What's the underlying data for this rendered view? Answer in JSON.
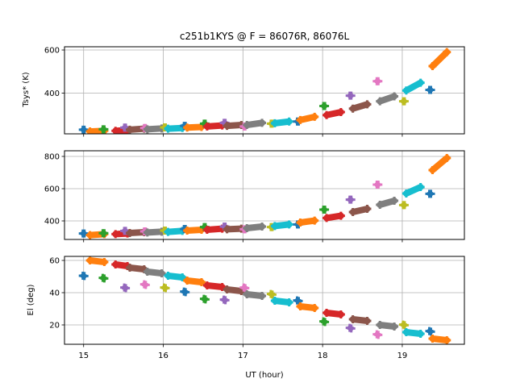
{
  "chart_data": {
    "type": "scatter",
    "title": "c251b1KYS @ F = 86076R, 86076L",
    "xlabel": "UT (hour)",
    "xlim": [
      14.76,
      19.78
    ],
    "xticks": [
      15,
      16,
      17,
      18,
      19
    ],
    "xtick_labels": [
      "15",
      "16",
      "17",
      "18",
      "19"
    ],
    "grid": true,
    "colors": [
      "#1f77b4",
      "#ff7f0e",
      "#2ca02c",
      "#d62728",
      "#9467bd",
      "#8c564b",
      "#e377c2",
      "#7f7f7f",
      "#bcbd22",
      "#17becf"
    ],
    "panels": [
      {
        "name": "tsys-r",
        "ylabel": "Tsys* (K)",
        "ylim": [
          211,
          615
        ],
        "yticks": [
          400,
          600
        ],
        "ytick_labels": [
          "400",
          "600"
        ],
        "show_xtick_labels": false
      },
      {
        "name": "tsys-l",
        "ylabel": "",
        "ylim": [
          285,
          835
        ],
        "yticks": [
          400,
          600,
          800
        ],
        "ytick_labels": [
          "400",
          "600",
          "800"
        ],
        "show_xtick_labels": false
      },
      {
        "name": "elevation",
        "ylabel": "El (deg)",
        "ylim": [
          8,
          62.5
        ],
        "yticks": [
          20,
          40,
          60
        ],
        "ytick_labels": [
          "20",
          "40",
          "60"
        ],
        "show_xtick_labels": true
      }
    ],
    "scans": [
      {
        "t0": 14.99,
        "t1": 15.01,
        "tsys_r": [
          230,
          230
        ],
        "tsys_l": [
          322,
          322
        ],
        "el": [
          50.5,
          50.3
        ]
      },
      {
        "t0": 15.08,
        "t1": 15.26,
        "tsys_r": [
          222,
          225
        ],
        "tsys_l": [
          312,
          318
        ],
        "el": [
          60,
          59
        ]
      },
      {
        "t0": 15.24,
        "t1": 15.26,
        "tsys_r": [
          232,
          232
        ],
        "tsys_l": [
          324,
          324
        ],
        "el": [
          49.2,
          48.8
        ]
      },
      {
        "t0": 15.4,
        "t1": 15.55,
        "tsys_r": [
          225,
          228
        ],
        "tsys_l": [
          318,
          322
        ],
        "el": [
          57.5,
          56.5
        ]
      },
      {
        "t0": 15.51,
        "t1": 15.53,
        "tsys_r": [
          240,
          240
        ],
        "tsys_l": [
          338,
          338
        ],
        "el": [
          43.2,
          42.8
        ]
      },
      {
        "t0": 15.58,
        "t1": 15.76,
        "tsys_r": [
          230,
          235
        ],
        "tsys_l": [
          325,
          330
        ],
        "el": [
          55.5,
          54.5
        ]
      },
      {
        "t0": 15.76,
        "t1": 15.78,
        "tsys_r": [
          238,
          238
        ],
        "tsys_l": [
          335,
          335
        ],
        "el": [
          45.2,
          44.8
        ]
      },
      {
        "t0": 15.8,
        "t1": 15.98,
        "tsys_r": [
          232,
          236
        ],
        "tsys_l": [
          328,
          333
        ],
        "el": [
          53,
          52
        ]
      },
      {
        "t0": 16.01,
        "t1": 16.03,
        "tsys_r": [
          241,
          241
        ],
        "tsys_l": [
          340,
          340
        ],
        "el": [
          43.2,
          42.8
        ]
      },
      {
        "t0": 16.06,
        "t1": 16.24,
        "tsys_r": [
          235,
          238
        ],
        "tsys_l": [
          332,
          338
        ],
        "el": [
          50.5,
          49.5
        ]
      },
      {
        "t0": 16.26,
        "t1": 16.28,
        "tsys_r": [
          248,
          248
        ],
        "tsys_l": [
          350,
          350
        ],
        "el": [
          40.7,
          40.3
        ]
      },
      {
        "t0": 16.3,
        "t1": 16.48,
        "tsys_r": [
          240,
          243
        ],
        "tsys_l": [
          340,
          345
        ],
        "el": [
          47.5,
          46.5
        ]
      },
      {
        "t0": 16.51,
        "t1": 16.53,
        "tsys_r": [
          258,
          258
        ],
        "tsys_l": [
          362,
          362
        ],
        "el": [
          36.2,
          35.8
        ]
      },
      {
        "t0": 16.55,
        "t1": 16.74,
        "tsys_r": [
          245,
          250
        ],
        "tsys_l": [
          345,
          352
        ],
        "el": [
          44.5,
          43.5
        ]
      },
      {
        "t0": 16.76,
        "t1": 16.78,
        "tsys_r": [
          262,
          262
        ],
        "tsys_l": [
          365,
          365
        ],
        "el": [
          35.7,
          35.3
        ]
      },
      {
        "t0": 16.8,
        "t1": 16.98,
        "tsys_r": [
          248,
          252
        ],
        "tsys_l": [
          348,
          352
        ],
        "el": [
          42,
          41
        ]
      },
      {
        "t0": 17.01,
        "t1": 17.03,
        "tsys_r": [
          245,
          245
        ],
        "tsys_l": [
          348,
          348
        ],
        "el": [
          43.2,
          42.8
        ]
      },
      {
        "t0": 17.05,
        "t1": 17.24,
        "tsys_r": [
          252,
          262
        ],
        "tsys_l": [
          355,
          365
        ],
        "el": [
          39,
          38
        ]
      },
      {
        "t0": 17.35,
        "t1": 17.37,
        "tsys_r": [
          258,
          258
        ],
        "tsys_l": [
          362,
          362
        ],
        "el": [
          39.2,
          38.8
        ]
      },
      {
        "t0": 17.4,
        "t1": 17.58,
        "tsys_r": [
          260,
          268
        ],
        "tsys_l": [
          368,
          378
        ],
        "el": [
          35,
          34
        ]
      },
      {
        "t0": 17.68,
        "t1": 17.7,
        "tsys_r": [
          268,
          268
        ],
        "tsys_l": [
          378,
          378
        ],
        "el": [
          35.2,
          34.8
        ]
      },
      {
        "t0": 17.72,
        "t1": 17.9,
        "tsys_r": [
          275,
          290
        ],
        "tsys_l": [
          390,
          402
        ],
        "el": [
          31.5,
          30.5
        ]
      },
      {
        "t0": 18.01,
        "t1": 18.03,
        "tsys_r": [
          340,
          340
        ],
        "tsys_l": [
          470,
          470
        ],
        "el": [
          22.2,
          21.8
        ]
      },
      {
        "t0": 18.05,
        "t1": 18.23,
        "tsys_r": [
          298,
          312
        ],
        "tsys_l": [
          418,
          432
        ],
        "el": [
          27.5,
          26.5
        ]
      },
      {
        "t0": 18.34,
        "t1": 18.36,
        "tsys_r": [
          388,
          388
        ],
        "tsys_l": [
          532,
          532
        ],
        "el": [
          18.2,
          17.8
        ]
      },
      {
        "t0": 18.38,
        "t1": 18.56,
        "tsys_r": [
          328,
          348
        ],
        "tsys_l": [
          455,
          475
        ],
        "el": [
          23.5,
          22.5
        ]
      },
      {
        "t0": 18.68,
        "t1": 18.7,
        "tsys_r": [
          455,
          455
        ],
        "tsys_l": [
          625,
          625
        ],
        "el": [
          14.2,
          13.8
        ]
      },
      {
        "t0": 18.72,
        "t1": 18.9,
        "tsys_r": [
          362,
          385
        ],
        "tsys_l": [
          500,
          525
        ],
        "el": [
          20,
          19
        ]
      },
      {
        "t0": 19.01,
        "t1": 19.03,
        "tsys_r": [
          362,
          362
        ],
        "tsys_l": [
          498,
          498
        ],
        "el": [
          20.2,
          19.8
        ]
      },
      {
        "t0": 19.05,
        "t1": 19.23,
        "tsys_r": [
          412,
          448
        ],
        "tsys_l": [
          570,
          610
        ],
        "el": [
          15.5,
          14.5
        ]
      },
      {
        "t0": 19.34,
        "t1": 19.36,
        "tsys_r": [
          415,
          415
        ],
        "tsys_l": [
          568,
          568
        ],
        "el": [
          16.2,
          15.8
        ]
      },
      {
        "t0": 19.38,
        "t1": 19.56,
        "tsys_r": [
          525,
          590
        ],
        "tsys_l": [
          715,
          790
        ],
        "el": [
          11.5,
          10.5
        ]
      }
    ]
  }
}
